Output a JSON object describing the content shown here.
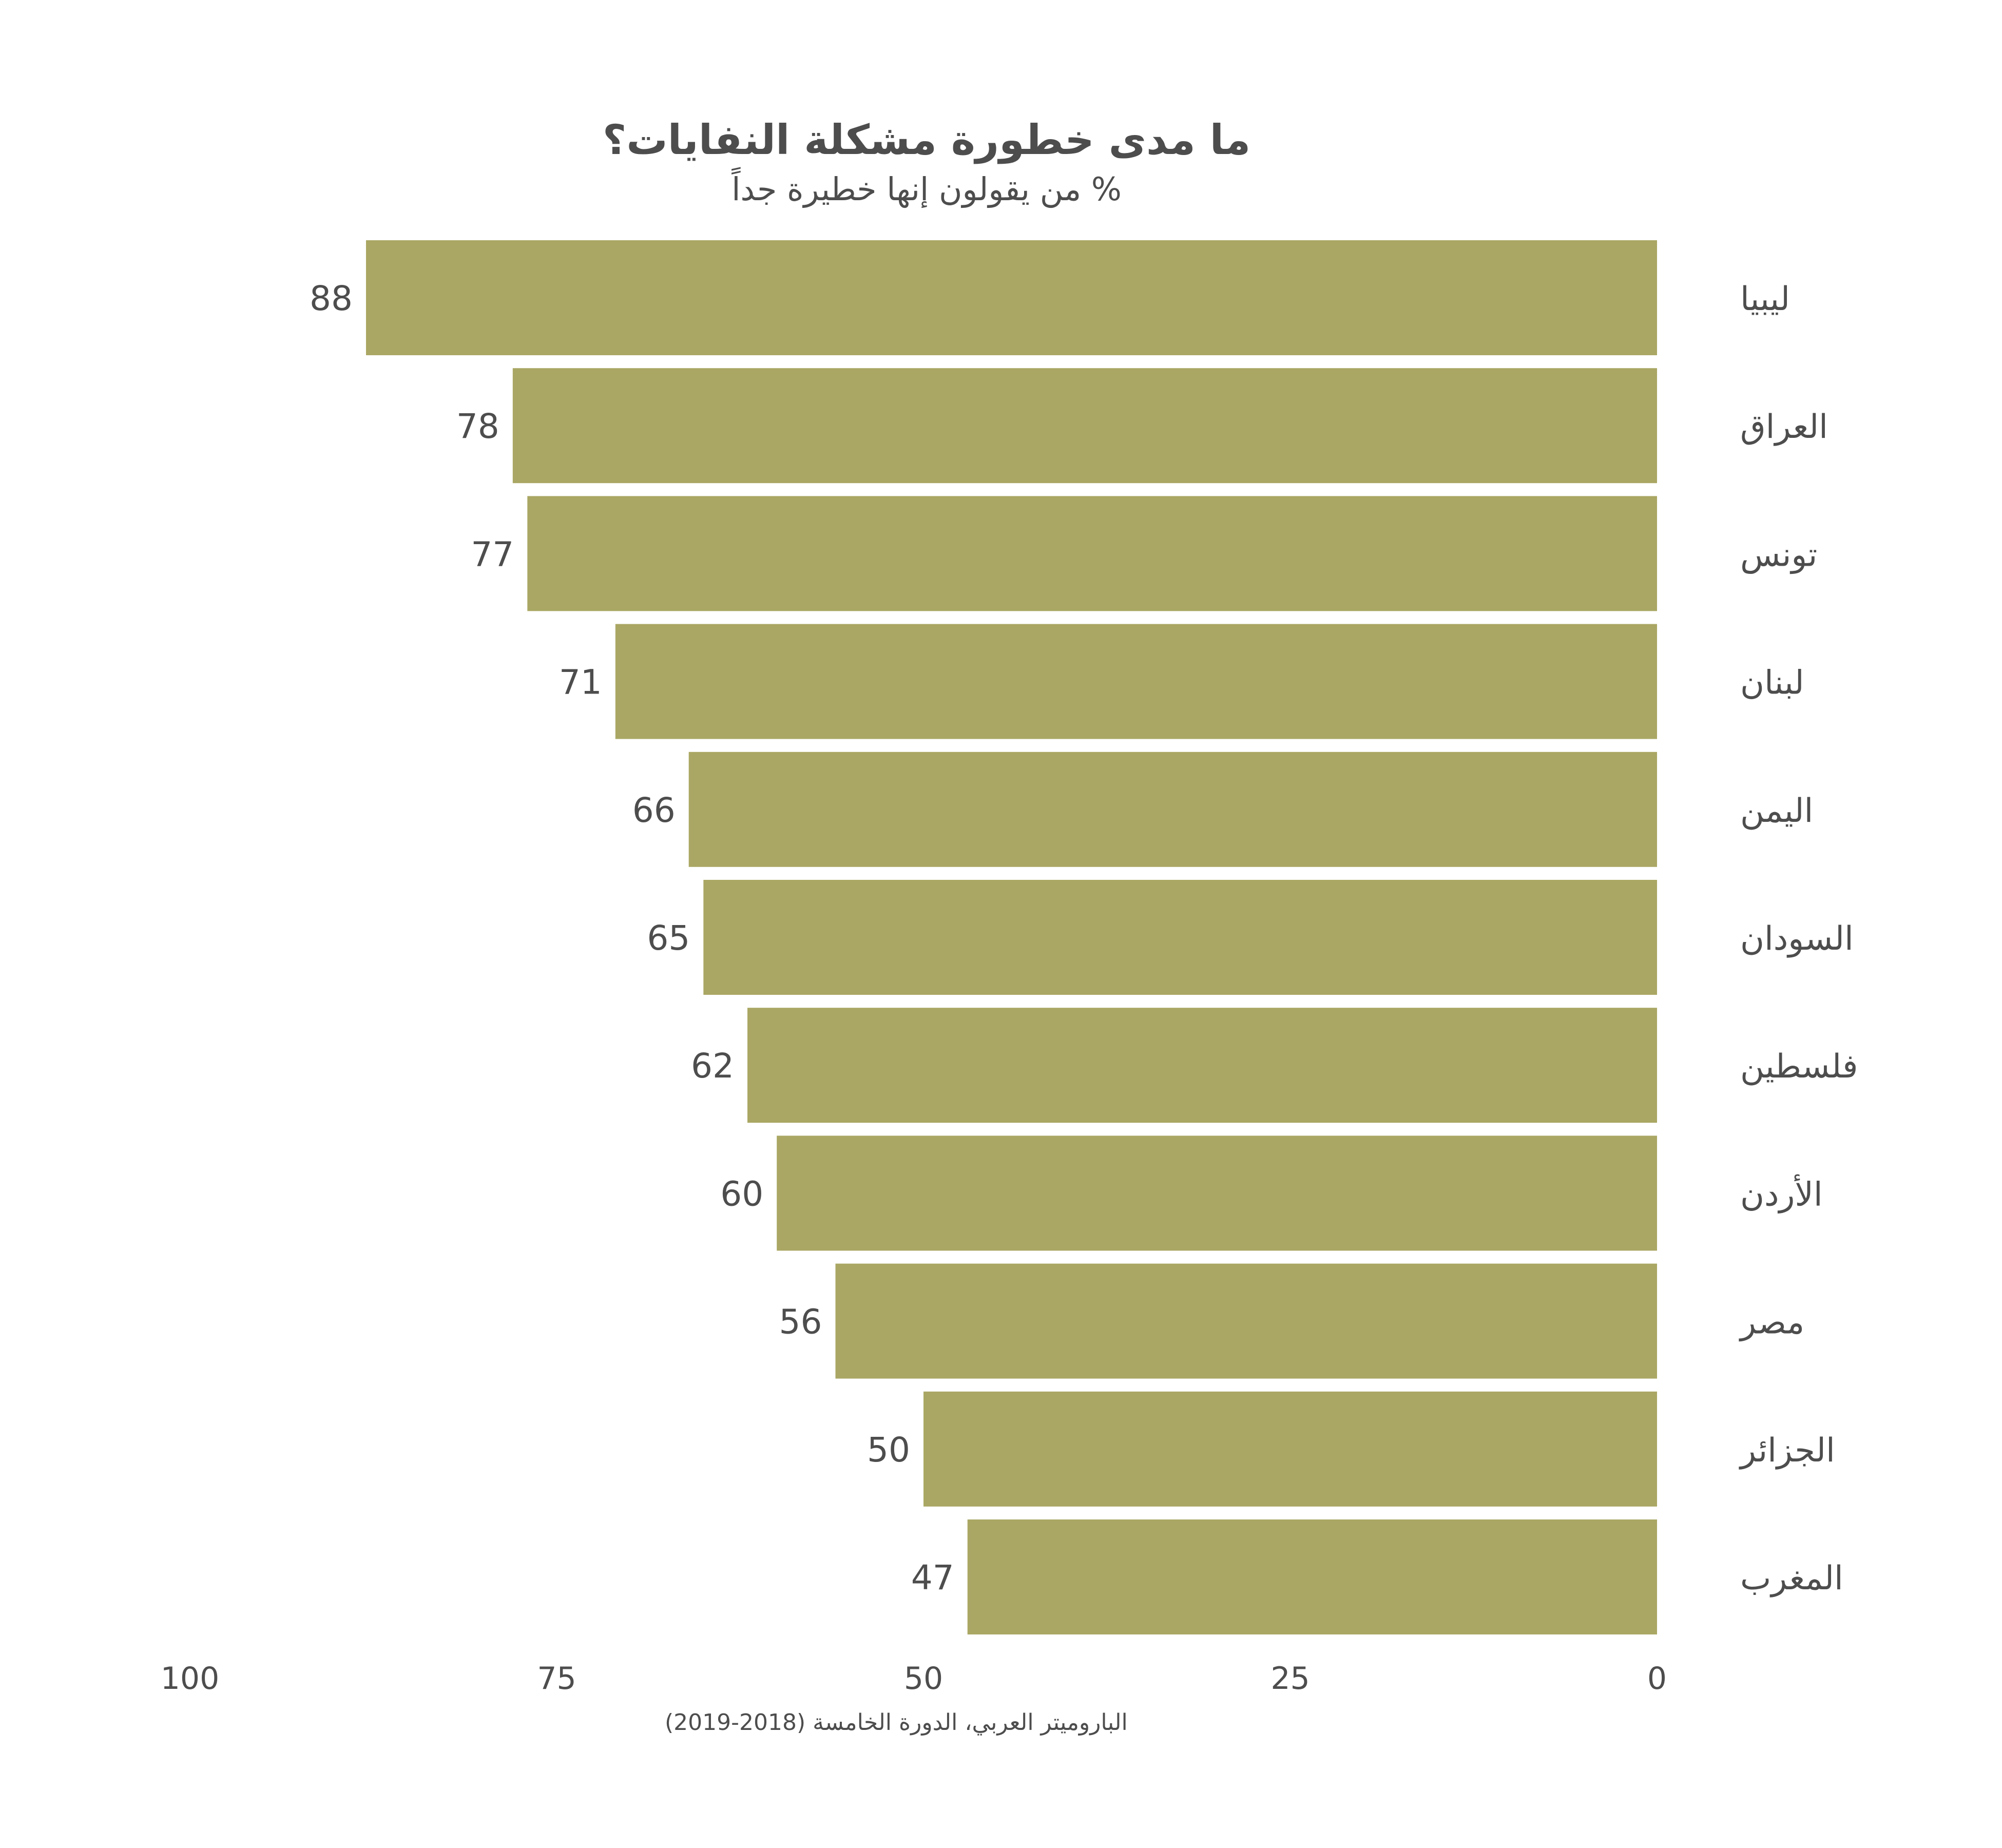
{
  "chart_data": {
    "type": "bar",
    "orientation": "horizontal",
    "direction": "right-to-left",
    "title": "ما مدى خطورة مشكلة النفايات؟",
    "subtitle": "% من يقولون إنها خطيرة جداً",
    "categories": [
      "ليبيا",
      "العراق",
      "تونس",
      "لبنان",
      "اليمن",
      "السودان",
      "فلسطين",
      "الأردن",
      "مصر",
      "الجزائر",
      "المغرب"
    ],
    "values": [
      88,
      78,
      77,
      71,
      66,
      65,
      62,
      60,
      56,
      50,
      47
    ],
    "xlim": [
      0,
      100
    ],
    "xticks": [
      0,
      25,
      50,
      75,
      100
    ],
    "xlabel": "",
    "ylabel": "",
    "grid": false,
    "bar_color": "#aaa764",
    "source": "الباروميتر العربي، الدورة الخامسة (2018-2019)"
  }
}
